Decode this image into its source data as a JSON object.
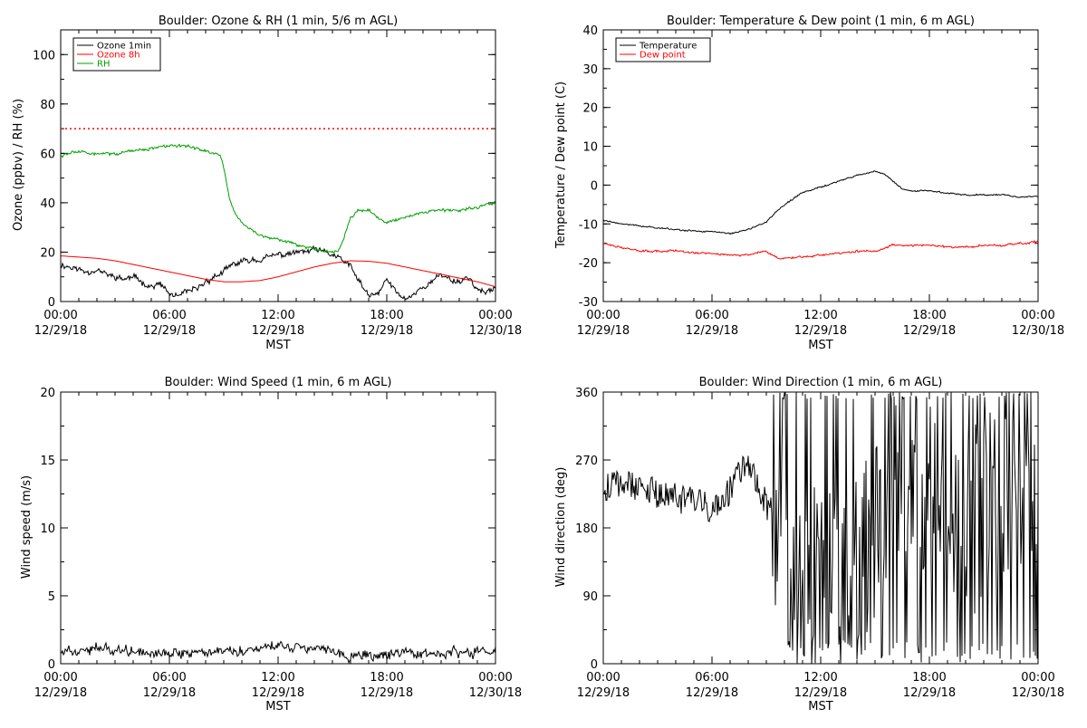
{
  "chart_data": [
    {
      "type": "line",
      "title": "Boulder: Ozone & RH (1 min, 5/6 m AGL)",
      "xlabel": "MST",
      "ylabel": "Ozone (ppbv) / RH (%)",
      "xlim": [
        0,
        24
      ],
      "ylim": [
        0,
        110
      ],
      "yticks": [
        0,
        20,
        40,
        60,
        80,
        100
      ],
      "xticks": [
        {
          "x": 0,
          "time": "00:00",
          "date": "12/29/18"
        },
        {
          "x": 6,
          "time": "06:00",
          "date": "12/29/18"
        },
        {
          "x": 12,
          "time": "12:00",
          "date": "12/29/18"
        },
        {
          "x": 18,
          "time": "18:00",
          "date": "12/29/18"
        },
        {
          "x": 24,
          "time": "00:00",
          "date": "12/30/18"
        }
      ],
      "legend": "top-left",
      "reference_line": {
        "y": 70,
        "color": "#ff0000",
        "style": "dotted"
      },
      "series": [
        {
          "name": "Ozone 1min",
          "color": "#000000",
          "x": [
            0,
            0.5,
            1,
            1.5,
            2,
            2.5,
            3,
            3.5,
            4,
            4.5,
            5,
            5.5,
            6,
            6.5,
            7,
            7.5,
            8,
            8.5,
            9,
            9.5,
            10,
            10.5,
            11,
            11.5,
            12,
            12.5,
            13,
            13.5,
            14,
            14.5,
            15,
            15.5,
            16,
            16.5,
            17,
            17.5,
            18,
            18.5,
            19,
            19.5,
            20,
            20.5,
            21,
            21.5,
            22,
            22.5,
            23,
            23.5,
            24
          ],
          "y": [
            15,
            14,
            13,
            12,
            13,
            11,
            10,
            9,
            10,
            8,
            6,
            7,
            3,
            2,
            4,
            5,
            8,
            10,
            12,
            15,
            16,
            17,
            17,
            18,
            19,
            19,
            20,
            20,
            21,
            20,
            19,
            17,
            14,
            8,
            2,
            3,
            9,
            4,
            1,
            3,
            6,
            8,
            11,
            9,
            8,
            10,
            5,
            3,
            6
          ],
          "noise": 1.6
        },
        {
          "name": "Ozone 8h",
          "color": "#ff0000",
          "x": [
            0,
            1,
            2,
            3,
            4,
            5,
            6,
            7,
            8,
            9,
            10,
            11,
            12,
            13,
            14,
            15,
            16,
            17,
            18,
            19,
            20,
            21,
            22,
            23,
            24
          ],
          "y": [
            18.5,
            18,
            17.5,
            16.5,
            15,
            13.5,
            12,
            10.5,
            9,
            8,
            8,
            8.5,
            10,
            12,
            14,
            15.5,
            16.5,
            16.3,
            15.5,
            14,
            12.5,
            11,
            9.5,
            8,
            6
          ],
          "noise": 0
        },
        {
          "name": "RH",
          "color": "#00a000",
          "x": [
            0,
            0.5,
            1,
            2,
            3,
            4,
            5,
            6,
            7,
            8,
            8.8,
            9,
            9.3,
            9.6,
            10,
            10.5,
            11,
            12,
            13,
            14,
            15,
            15.3,
            15.6,
            16,
            16.5,
            17,
            17.5,
            18,
            19,
            20,
            21,
            22,
            23,
            24
          ],
          "y": [
            59,
            60,
            61,
            60,
            60,
            61,
            62,
            63,
            63,
            61,
            59,
            54,
            42,
            36,
            32,
            29,
            27,
            25,
            23,
            21,
            20,
            20,
            25,
            34,
            37,
            37,
            34,
            32,
            34,
            36,
            37,
            37,
            38,
            40
          ],
          "noise": 0.8
        }
      ]
    },
    {
      "type": "line",
      "title": "Boulder: Temperature & Dew point (1 min, 6 m AGL)",
      "xlabel": "MST",
      "ylabel": "Temperature / Dew point (C)",
      "xlim": [
        0,
        24
      ],
      "ylim": [
        -30,
        40
      ],
      "yticks": [
        -30,
        -20,
        -10,
        0,
        10,
        20,
        30,
        40
      ],
      "xticks": [
        {
          "x": 0,
          "time": "00:00",
          "date": "12/29/18"
        },
        {
          "x": 6,
          "time": "06:00",
          "date": "12/29/18"
        },
        {
          "x": 12,
          "time": "12:00",
          "date": "12/29/18"
        },
        {
          "x": 18,
          "time": "18:00",
          "date": "12/29/18"
        },
        {
          "x": 24,
          "time": "00:00",
          "date": "12/30/18"
        }
      ],
      "legend": "top-left",
      "series": [
        {
          "name": "Temperature",
          "color": "#000000",
          "x": [
            0,
            1,
            2,
            3,
            4,
            5,
            6,
            7,
            7.5,
            8,
            8.5,
            9,
            9.5,
            10,
            10.5,
            11,
            12,
            13,
            14,
            15,
            15.5,
            16,
            16.5,
            17,
            18,
            19,
            20,
            21,
            22,
            23,
            24
          ],
          "y": [
            -9,
            -10,
            -10.5,
            -11,
            -11.5,
            -11.8,
            -12,
            -12.5,
            -12,
            -11.5,
            -10.5,
            -9.5,
            -7,
            -5,
            -3.5,
            -2,
            -0.5,
            1,
            2.5,
            3.5,
            3,
            1,
            -1,
            -1.5,
            -1.5,
            -2,
            -2.5,
            -2.5,
            -2.5,
            -3,
            -3
          ],
          "noise": 0.25
        },
        {
          "name": "Dew point",
          "color": "#ff0000",
          "x": [
            0,
            1,
            2,
            3,
            4,
            5,
            6,
            7,
            7.5,
            8,
            8.5,
            9,
            9.5,
            10,
            11,
            12,
            13,
            14,
            15,
            16,
            17,
            18,
            19,
            20,
            21,
            22,
            23,
            24
          ],
          "y": [
            -15,
            -16,
            -17,
            -17,
            -17,
            -17.5,
            -17.5,
            -18,
            -18,
            -18,
            -17.5,
            -17,
            -18.5,
            -19,
            -18.5,
            -18,
            -17.5,
            -17,
            -17,
            -15.5,
            -15.5,
            -15.5,
            -16,
            -16,
            -15.5,
            -15.5,
            -15,
            -14.5
          ],
          "noise": 0.35
        }
      ]
    },
    {
      "type": "line",
      "title": "Boulder: Wind Speed (1 min, 6 m AGL)",
      "xlabel": "MST",
      "ylabel": "Wind speed (m/s)",
      "xlim": [
        0,
        24
      ],
      "ylim": [
        0,
        20
      ],
      "yticks": [
        0,
        5,
        10,
        15,
        20
      ],
      "xticks": [
        {
          "x": 0,
          "time": "00:00",
          "date": "12/29/18"
        },
        {
          "x": 6,
          "time": "06:00",
          "date": "12/29/18"
        },
        {
          "x": 12,
          "time": "12:00",
          "date": "12/29/18"
        },
        {
          "x": 18,
          "time": "18:00",
          "date": "12/29/18"
        },
        {
          "x": 24,
          "time": "00:00",
          "date": "12/30/18"
        }
      ],
      "series": [
        {
          "name": "",
          "color": "#000000",
          "x": [
            0,
            2,
            4,
            6,
            8,
            10,
            11,
            12,
            13,
            14,
            15,
            15.5,
            16,
            18,
            20,
            22,
            24
          ],
          "y": [
            1,
            1.1,
            1,
            0.8,
            0.9,
            1,
            1.2,
            1.4,
            1.3,
            1.2,
            1.1,
            0.6,
            0.5,
            0.6,
            0.7,
            0.8,
            0.9
          ],
          "noise": 0.5
        }
      ]
    },
    {
      "type": "line",
      "title": "Boulder: Wind Direction (1 min, 6 m AGL)",
      "xlabel": "MST",
      "ylabel": "Wind direction (deg)",
      "xlim": [
        0,
        24
      ],
      "ylim": [
        0,
        360
      ],
      "yticks": [
        0,
        90,
        180,
        270,
        360
      ],
      "xticks": [
        {
          "x": 0,
          "time": "00:00",
          "date": "12/29/18"
        },
        {
          "x": 6,
          "time": "06:00",
          "date": "12/29/18"
        },
        {
          "x": 12,
          "time": "12:00",
          "date": "12/29/18"
        },
        {
          "x": 18,
          "time": "18:00",
          "date": "12/29/18"
        },
        {
          "x": 24,
          "time": "00:00",
          "date": "12/30/18"
        }
      ],
      "series": [
        {
          "name": "",
          "color": "#000000",
          "x": [
            0,
            1,
            2,
            3,
            4,
            5,
            6,
            7,
            7.5,
            8,
            8.5,
            9,
            9.5,
            10,
            10.5,
            11,
            12,
            13,
            14,
            15,
            16,
            17,
            18,
            19,
            20,
            21,
            22,
            23,
            24
          ],
          "y": [
            230,
            240,
            235,
            225,
            220,
            215,
            205,
            230,
            250,
            270,
            240,
            210,
            200,
            150,
            120,
            100,
            110,
            90,
            130,
            170,
            220,
            240,
            230,
            210,
            200,
            190,
            230,
            260,
            250
          ],
          "noise": 130,
          "wrap": true
        }
      ]
    }
  ]
}
